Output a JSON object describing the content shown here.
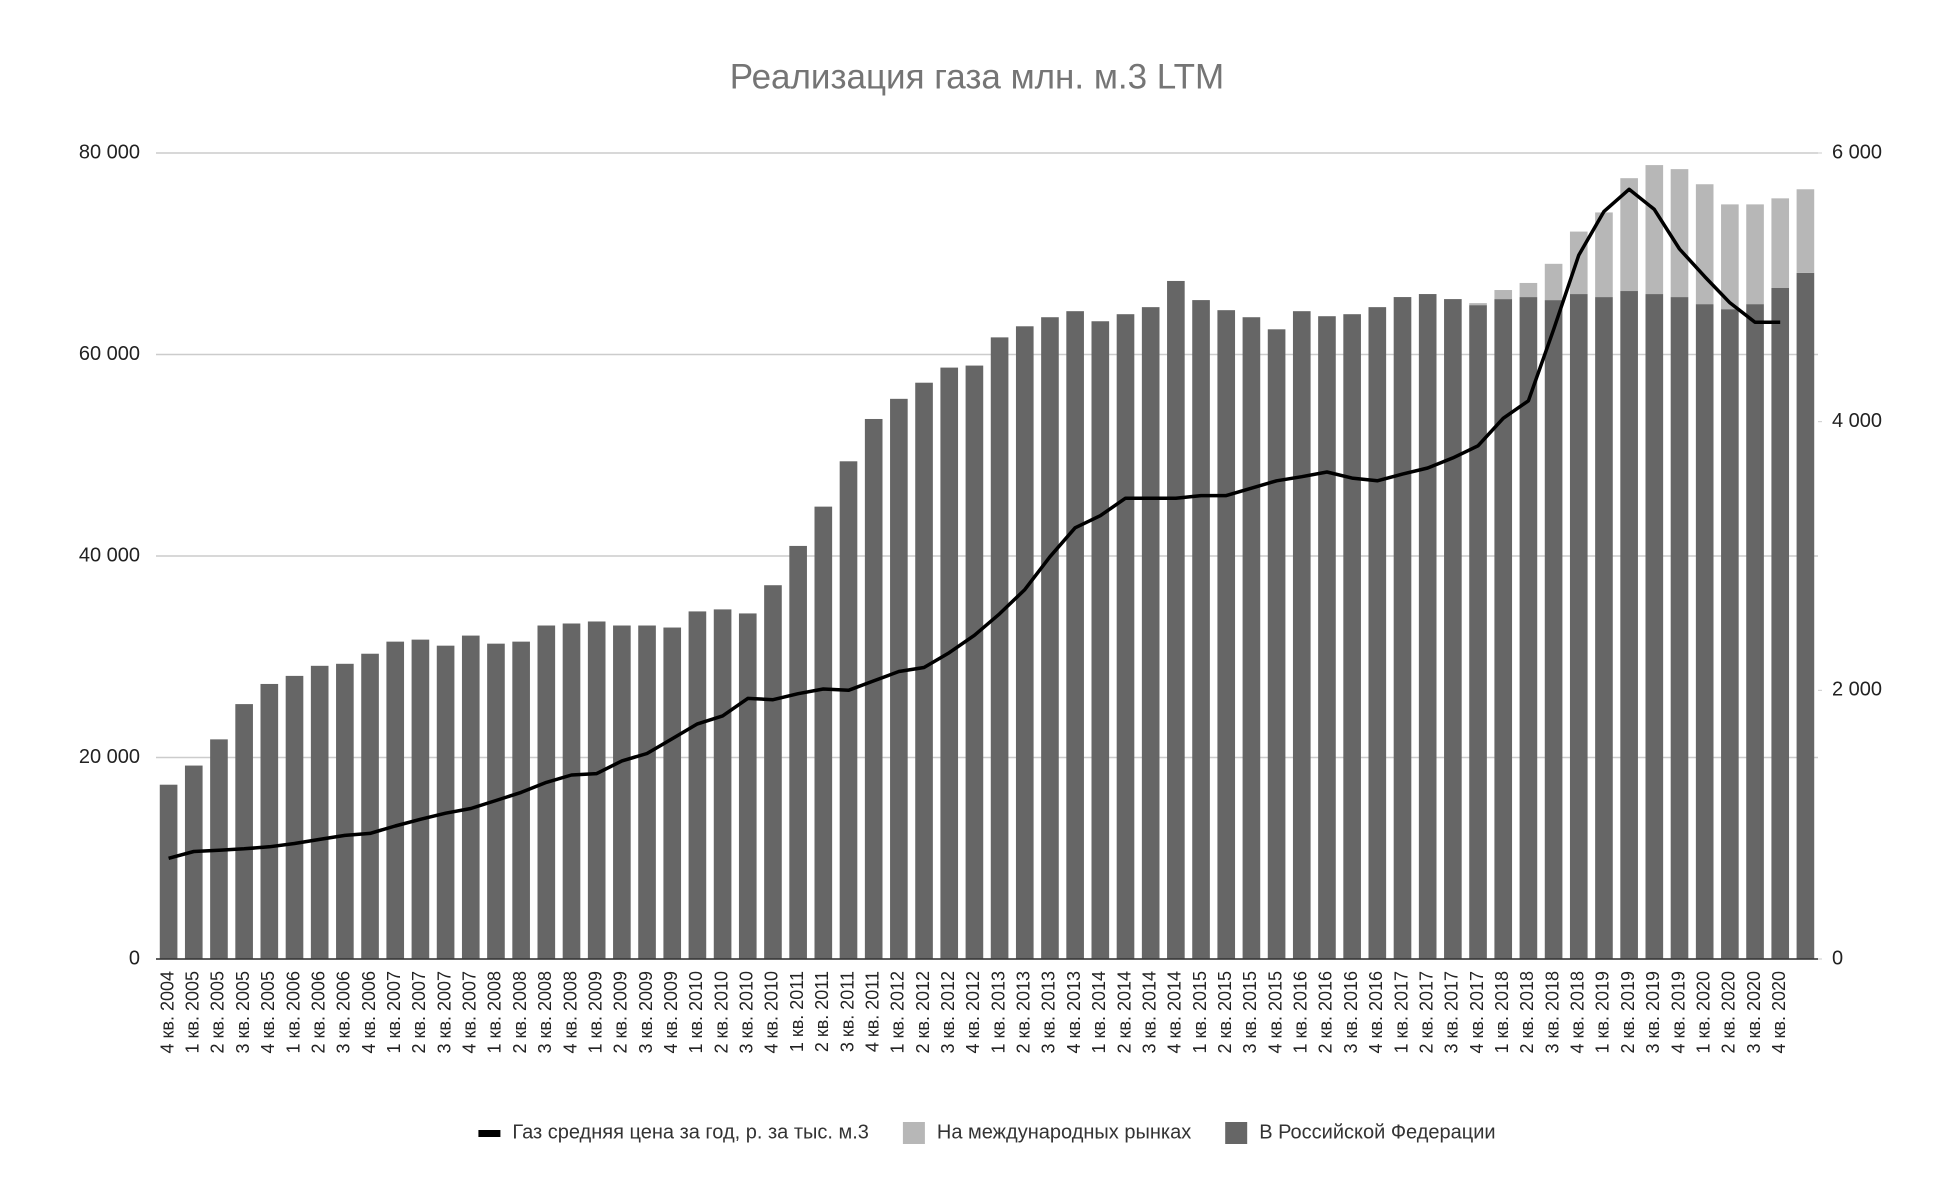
{
  "chart_data": {
    "type": "bar",
    "title": "Реализация газа млн. м.3 LTM",
    "categories": [
      "4 кв. 2004",
      "1 кв. 2005",
      "2 кв. 2005",
      "3 кв. 2005",
      "4 кв. 2005",
      "1 кв. 2006",
      "2 кв. 2006",
      "3 кв. 2006",
      "4 кв. 2006",
      "1 кв. 2007",
      "2 кв. 2007",
      "3 кв. 2007",
      "4 кв. 2007",
      "1 кв. 2008",
      "2 кв. 2008",
      "3 кв. 2008",
      "4 кв. 2008",
      "1 кв. 2009",
      "2 кв. 2009",
      "3 кв. 2009",
      "4 кв. 2009",
      "1 кв. 2010",
      "2 кв. 2010",
      "3 кв. 2010",
      "4 кв. 2010",
      "1 кв. 2011",
      "2 кв. 2011",
      "3 кв. 2011",
      "4 кв. 2011",
      "1 кв. 2012",
      "2 кв. 2012",
      "3 кв. 2012",
      "4 кв. 2012",
      "1 кв. 2013",
      "2 кв. 2013",
      "3 кв. 2013",
      "4 кв. 2013",
      "1 кв. 2014",
      "2 кв. 2014",
      "3 кв. 2014",
      "4 кв. 2014",
      "1 кв. 2015",
      "2 кв. 2015",
      "3 кв. 2015",
      "4 кв. 2015",
      "1 кв. 2016",
      "2 кв. 2016",
      "3 кв. 2016",
      "4 кв. 2016",
      "1 кв. 2017",
      "2 кв. 2017",
      "3 кв. 2017",
      "4 кв. 2017",
      "1 кв. 2018",
      "2 кв. 2018",
      "3 кв. 2018",
      "4 кв. 2018",
      "1 кв. 2019",
      "2 кв. 2019",
      "3 кв. 2019",
      "4 кв. 2019",
      "1 кв. 2020",
      "2 кв. 2020",
      "3 кв. 2020",
      "4 кв. 2020",
      null
    ],
    "series": [
      {
        "name": "В Российской Федерации",
        "color": "#666666",
        "type": "bar",
        "values": [
          17300,
          19200,
          21800,
          25300,
          27300,
          28100,
          29100,
          29300,
          30300,
          31500,
          31700,
          31100,
          32100,
          31300,
          31500,
          33100,
          33300,
          33500,
          33100,
          33100,
          32900,
          34500,
          34700,
          34300,
          37100,
          41000,
          44900,
          49400,
          53600,
          55600,
          57200,
          58700,
          58900,
          61700,
          62800,
          63700,
          64300,
          63300,
          64000,
          64700,
          67300,
          65400,
          64400,
          63700,
          62500,
          64300,
          63800,
          64000,
          64700,
          65700,
          66000,
          65500,
          64900,
          65500,
          65700,
          65400,
          66000,
          65700,
          66300,
          66000,
          65700,
          65000,
          64500,
          65000,
          66600,
          68100
        ]
      },
      {
        "name": "На международных рынках",
        "color": "#b7b7b7",
        "type": "bar",
        "values": [
          0,
          0,
          0,
          0,
          0,
          0,
          0,
          0,
          0,
          0,
          0,
          0,
          0,
          0,
          0,
          0,
          0,
          0,
          0,
          0,
          0,
          0,
          0,
          0,
          0,
          0,
          0,
          0,
          0,
          0,
          0,
          0,
          0,
          0,
          0,
          0,
          0,
          0,
          0,
          0,
          0,
          0,
          0,
          0,
          0,
          0,
          0,
          0,
          0,
          0,
          0,
          0,
          200,
          900,
          1400,
          3600,
          6200,
          8400,
          11200,
          12800,
          12700,
          11900,
          10400,
          9900,
          8900,
          8300
        ]
      },
      {
        "name": "Газ средняя цена за год, р. за тыс. м.3",
        "color": "#000000",
        "type": "line",
        "axis": "y2",
        "values": [
          750,
          800,
          810,
          820,
          835,
          860,
          890,
          920,
          935,
          990,
          1040,
          1085,
          1120,
          1180,
          1240,
          1315,
          1370,
          1380,
          1475,
          1530,
          1640,
          1750,
          1810,
          1940,
          1930,
          1975,
          2010,
          2000,
          2070,
          2140,
          2170,
          2280,
          2410,
          2570,
          2750,
          2995,
          3210,
          3300,
          3430,
          3430,
          3430,
          3450,
          3450,
          3505,
          3560,
          3590,
          3625,
          3580,
          3560,
          3610,
          3655,
          3730,
          3820,
          4025,
          4155,
          4685,
          5240,
          5565,
          5730,
          5580,
          5285,
          5080,
          4885,
          4740,
          4740,
          null
        ]
      }
    ],
    "ylim": [
      0,
      80000
    ],
    "yticks": [
      0,
      {
        "value": 20000,
        "label": "20 000"
      },
      {
        "value": 40000,
        "label": "40 000"
      },
      {
        "value": 60000,
        "label": "60 000"
      },
      {
        "value": 80000,
        "label": "80 000"
      }
    ],
    "y2lim": [
      0,
      6000
    ],
    "y2ticks": [
      0,
      {
        "value": 2000,
        "label": "2 000"
      },
      {
        "value": 4000,
        "label": "4 000"
      },
      {
        "value": 6000,
        "label": "6 000"
      }
    ],
    "stacked": true,
    "grid": true,
    "legend": "bottom"
  }
}
